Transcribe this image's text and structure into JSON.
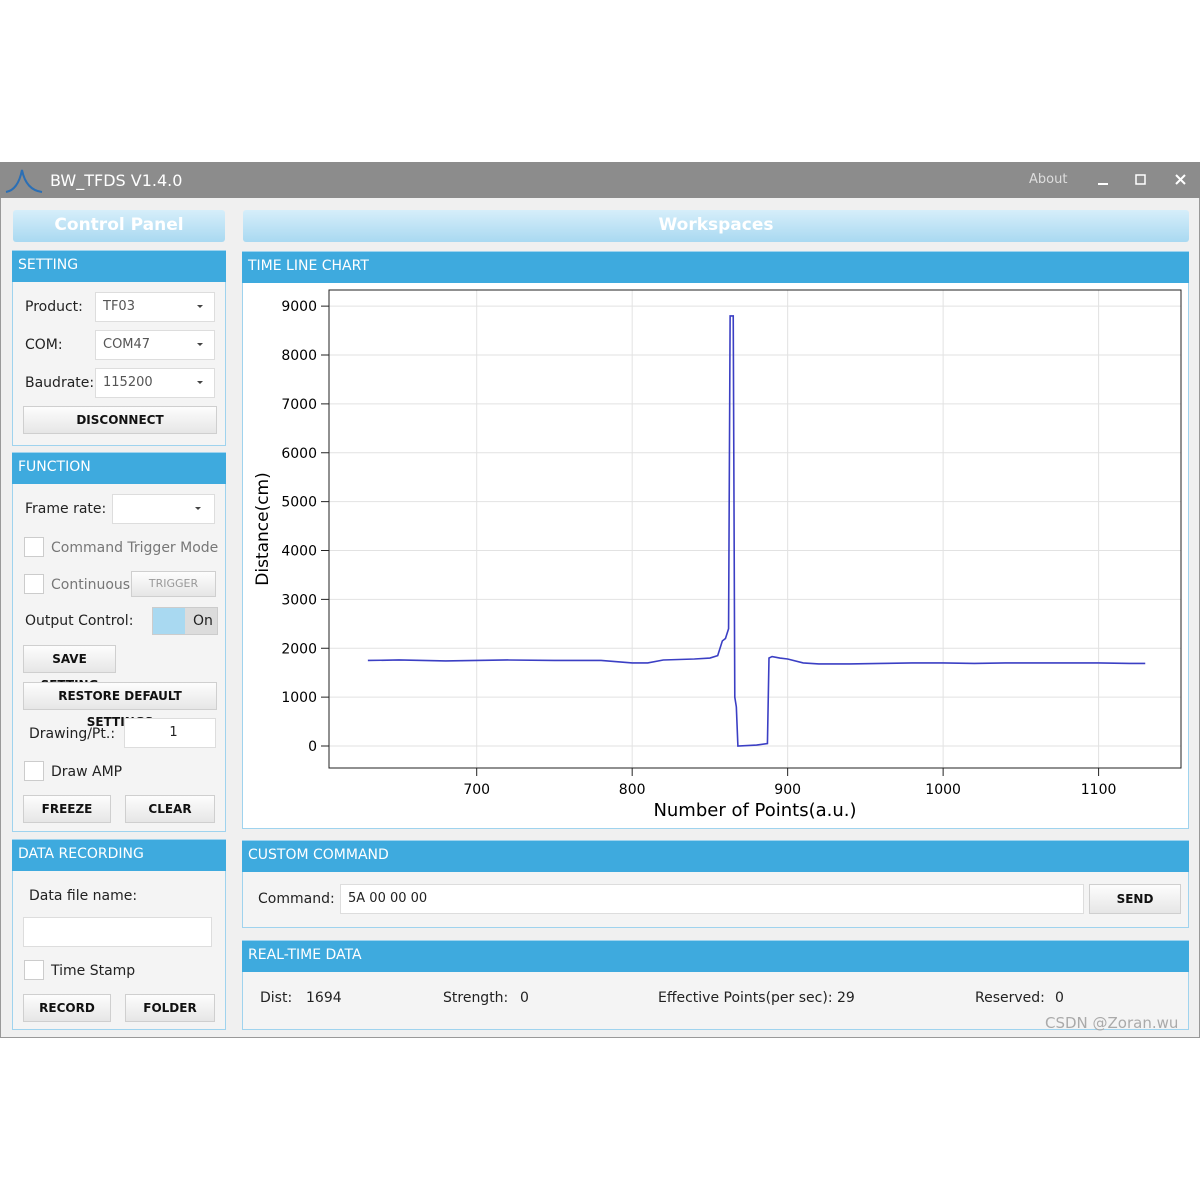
{
  "window": {
    "title": "BW_TFDS V1.4.0",
    "about": "About"
  },
  "control_panel": {
    "title": "Control Panel",
    "setting": {
      "header": "SETTING",
      "product_label": "Product:",
      "product_value": "TF03",
      "com_label": "COM:",
      "com_value": "COM47",
      "baud_label": "Baudrate:",
      "baud_value": "115200",
      "disconnect": "DISCONNECT"
    },
    "function": {
      "header": "FUNCTION",
      "frame_rate_label": "Frame rate:",
      "command_trigger_mode": "Command Trigger Mode",
      "continuous": "Continuous",
      "trigger": "TRIGGER",
      "output_control_label": "Output Control:",
      "output_value": "On",
      "save_setting": "SAVE SETTING",
      "restore_default": "RESTORE DEFAULT SETTINGS",
      "drawing_label": "Drawing/Pt.:",
      "drawing_value": 1,
      "draw_amp": "Draw AMP",
      "freeze": "FREEZE",
      "clear": "CLEAR"
    },
    "data_recording": {
      "header": "DATA RECORDING",
      "file_name_label": "Data file name:",
      "time_stamp": "Time Stamp",
      "record": "RECORD",
      "folder": "FOLDER"
    }
  },
  "workspaces": {
    "title": "Workspaces",
    "chart_header": "TIME LINE CHART",
    "custom_command": {
      "header": "CUSTOM COMMAND",
      "label": "Command:",
      "value": "5A 00 00 00",
      "send": "SEND"
    },
    "realtime": {
      "header": "REAL-TIME DATA",
      "dist_label": "Dist:",
      "dist": 1694,
      "strength_label": "Strength:",
      "strength": 0,
      "effective_label": "Effective Points(per sec):",
      "effective": 29,
      "reserved_label": "Reserved:",
      "reserved": 0
    }
  },
  "watermark": "CSDN @Zoran.wu",
  "chart_data": {
    "type": "line",
    "xlabel": "Number of Points(a.u.)",
    "ylabel": "Distance(cm)",
    "x": [
      630,
      650,
      680,
      700,
      720,
      750,
      780,
      800,
      810,
      820,
      840,
      850,
      855,
      858,
      860,
      862,
      863,
      865,
      866,
      867,
      868,
      880,
      887,
      888,
      890,
      895,
      900,
      910,
      920,
      940,
      960,
      980,
      1000,
      1020,
      1040,
      1060,
      1080,
      1100,
      1120,
      1130
    ],
    "series": [
      {
        "color": "#3b3fc4",
        "values": [
          1750,
          1760,
          1740,
          1750,
          1760,
          1750,
          1750,
          1700,
          1700,
          1760,
          1780,
          1800,
          1850,
          2150,
          2200,
          2400,
          8800,
          8800,
          1000,
          800,
          0,
          20,
          50,
          1800,
          1830,
          1800,
          1780,
          1700,
          1680,
          1680,
          1690,
          1700,
          1700,
          1690,
          1700,
          1700,
          1700,
          1700,
          1690,
          1690
        ]
      }
    ],
    "xlim": [
      605,
      1153
    ],
    "ylim": [
      -450,
      9330
    ],
    "xticks": [
      700,
      800,
      900,
      1000,
      1100
    ],
    "yticks": [
      0,
      1000,
      2000,
      3000,
      4000,
      5000,
      6000,
      7000,
      8000,
      9000
    ],
    "grid": true
  }
}
